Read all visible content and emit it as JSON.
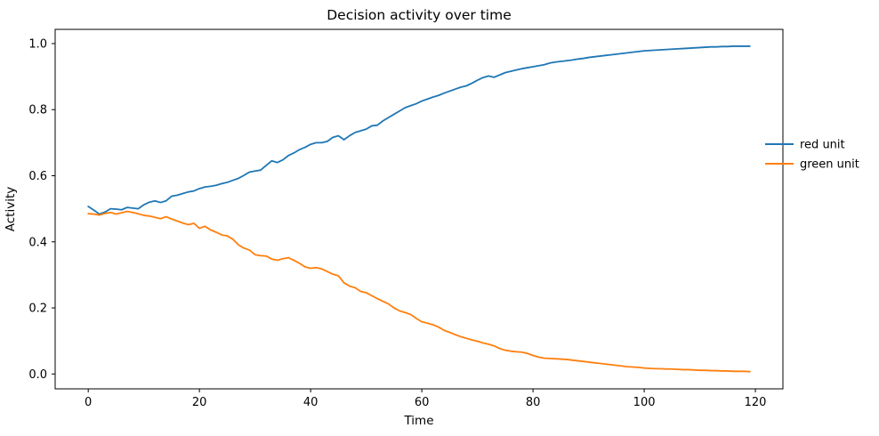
{
  "figure": {
    "title": "Decision activity over time",
    "xlabel": "Time",
    "ylabel": "Activity"
  },
  "legend": {
    "position": "center-right-outside",
    "items": [
      {
        "label": "red unit",
        "color": "#1f77b4"
      },
      {
        "label": "green unit",
        "color": "#ff7f0e"
      }
    ]
  },
  "colors": {
    "spine": "#000000",
    "background": "#ffffff",
    "series_red_unit": "#1f77b4",
    "series_green_unit": "#ff7f0e"
  },
  "chart_data": {
    "type": "line",
    "title": "Decision activity over time",
    "xlabel": "Time",
    "ylabel": "Activity",
    "grid": false,
    "legend_position": "center right, outside axes",
    "xlim": [
      -5.95,
      124.95
    ],
    "ylim": [
      -0.045,
      1.043
    ],
    "xticks": [
      0,
      20,
      40,
      60,
      80,
      100,
      120
    ],
    "yticks": [
      0.0,
      0.2,
      0.4,
      0.6,
      0.8,
      1.0
    ],
    "x": [
      0,
      1,
      2,
      3,
      4,
      5,
      6,
      7,
      8,
      9,
      10,
      11,
      12,
      13,
      14,
      15,
      16,
      17,
      18,
      19,
      20,
      21,
      22,
      23,
      24,
      25,
      26,
      27,
      28,
      29,
      30,
      31,
      32,
      33,
      34,
      35,
      36,
      37,
      38,
      39,
      40,
      41,
      42,
      43,
      44,
      45,
      46,
      47,
      48,
      49,
      50,
      51,
      52,
      53,
      54,
      55,
      56,
      57,
      58,
      59,
      60,
      61,
      62,
      63,
      64,
      65,
      66,
      67,
      68,
      69,
      70,
      71,
      72,
      73,
      74,
      75,
      76,
      77,
      78,
      79,
      80,
      81,
      82,
      83,
      84,
      85,
      86,
      87,
      88,
      89,
      90,
      91,
      92,
      93,
      94,
      95,
      96,
      97,
      98,
      99,
      100,
      101,
      102,
      103,
      104,
      105,
      106,
      107,
      108,
      109,
      110,
      111,
      112,
      113,
      114,
      115,
      116,
      117,
      118,
      119
    ],
    "series": [
      {
        "name": "red unit",
        "color": "#1f77b4",
        "values": [
          0.507,
          0.496,
          0.484,
          0.49,
          0.5,
          0.499,
          0.497,
          0.504,
          0.502,
          0.5,
          0.512,
          0.52,
          0.524,
          0.519,
          0.524,
          0.538,
          0.541,
          0.546,
          0.551,
          0.554,
          0.561,
          0.566,
          0.568,
          0.571,
          0.576,
          0.58,
          0.586,
          0.592,
          0.601,
          0.611,
          0.614,
          0.617,
          0.631,
          0.645,
          0.64,
          0.648,
          0.661,
          0.669,
          0.679,
          0.686,
          0.695,
          0.7,
          0.7,
          0.704,
          0.716,
          0.721,
          0.709,
          0.721,
          0.731,
          0.736,
          0.741,
          0.751,
          0.753,
          0.766,
          0.776,
          0.786,
          0.796,
          0.806,
          0.812,
          0.818,
          0.826,
          0.832,
          0.838,
          0.843,
          0.85,
          0.856,
          0.862,
          0.868,
          0.872,
          0.88,
          0.889,
          0.897,
          0.902,
          0.898,
          0.905,
          0.912,
          0.916,
          0.92,
          0.924,
          0.927,
          0.93,
          0.933,
          0.936,
          0.941,
          0.944,
          0.946,
          0.948,
          0.95,
          0.953,
          0.955,
          0.958,
          0.96,
          0.962,
          0.964,
          0.966,
          0.968,
          0.97,
          0.972,
          0.974,
          0.976,
          0.978,
          0.979,
          0.98,
          0.981,
          0.982,
          0.983,
          0.984,
          0.985,
          0.986,
          0.987,
          0.988,
          0.989,
          0.99,
          0.99,
          0.991,
          0.991,
          0.992,
          0.992,
          0.992,
          0.992
        ]
      },
      {
        "name": "green unit",
        "color": "#ff7f0e",
        "values": [
          0.485,
          0.484,
          0.481,
          0.486,
          0.489,
          0.484,
          0.488,
          0.492,
          0.489,
          0.485,
          0.48,
          0.478,
          0.474,
          0.47,
          0.476,
          0.469,
          0.463,
          0.457,
          0.452,
          0.456,
          0.441,
          0.447,
          0.436,
          0.429,
          0.421,
          0.418,
          0.408,
          0.391,
          0.381,
          0.375,
          0.361,
          0.358,
          0.357,
          0.348,
          0.344,
          0.349,
          0.352,
          0.344,
          0.335,
          0.324,
          0.32,
          0.322,
          0.318,
          0.31,
          0.302,
          0.297,
          0.276,
          0.266,
          0.261,
          0.25,
          0.246,
          0.237,
          0.228,
          0.22,
          0.212,
          0.2,
          0.191,
          0.186,
          0.18,
          0.168,
          0.158,
          0.154,
          0.149,
          0.142,
          0.132,
          0.126,
          0.119,
          0.113,
          0.108,
          0.103,
          0.099,
          0.094,
          0.09,
          0.085,
          0.077,
          0.072,
          0.069,
          0.067,
          0.066,
          0.062,
          0.056,
          0.051,
          0.048,
          0.047,
          0.046,
          0.045,
          0.044,
          0.042,
          0.04,
          0.038,
          0.036,
          0.034,
          0.032,
          0.03,
          0.028,
          0.026,
          0.024,
          0.022,
          0.021,
          0.02,
          0.018,
          0.017,
          0.016,
          0.016,
          0.015,
          0.015,
          0.014,
          0.013,
          0.013,
          0.012,
          0.011,
          0.011,
          0.01,
          0.01,
          0.009,
          0.009,
          0.008,
          0.008,
          0.008,
          0.007
        ]
      }
    ]
  }
}
